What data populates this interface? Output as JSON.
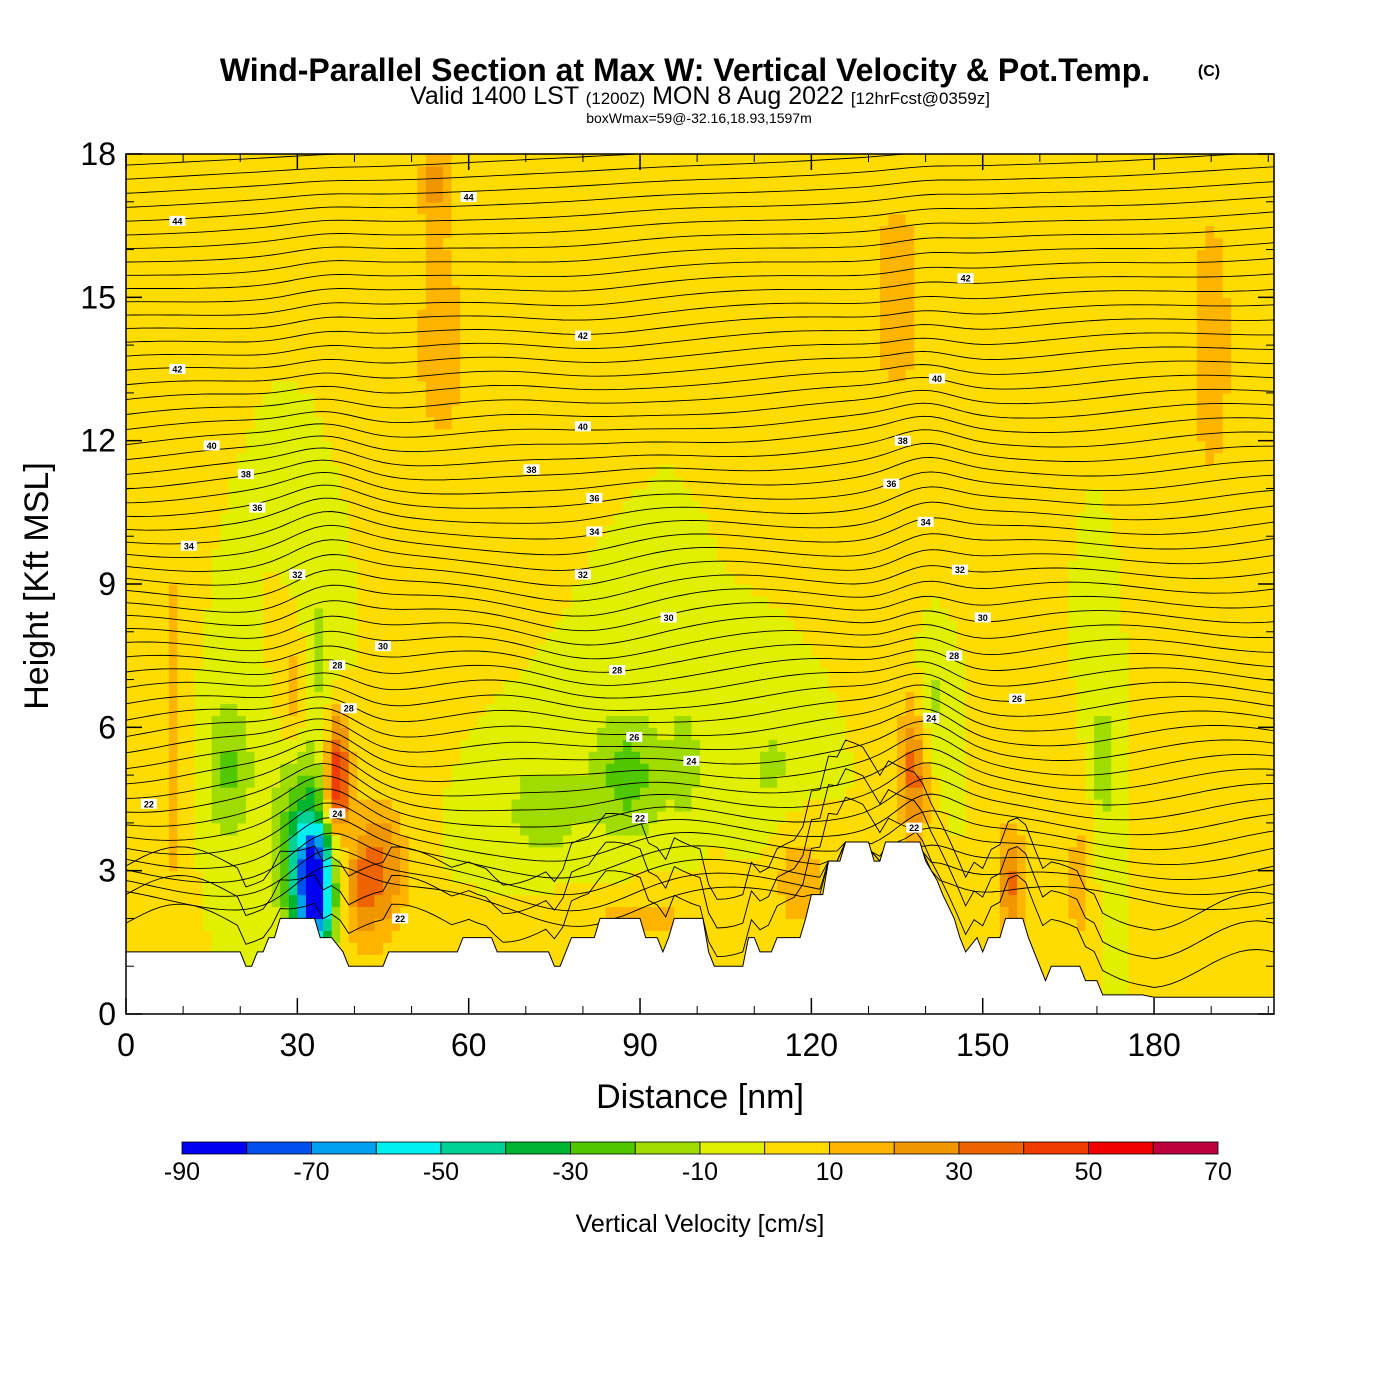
{
  "title": {
    "main": "Wind-Parallel Section at Max W: Vertical Velocity & Pot.Temp.",
    "copyright": "(C)",
    "valid_prefix": "Valid 1400 LST",
    "valid_utc": "(1200Z)",
    "valid_date": "MON 8 Aug 2022",
    "forecast": "[12hrFcst@0359z]",
    "boxwmax": "boxWmax=59@-32.16,18.93,1597m"
  },
  "chart_data": {
    "type": "heatmap",
    "xlabel": "Distance [nm]",
    "ylabel": "Height [Kft MSL]",
    "xlim": [
      0,
      201
    ],
    "ylim": [
      0,
      18
    ],
    "x_ticks": [
      0,
      30,
      60,
      90,
      120,
      150,
      180
    ],
    "y_ticks": [
      0,
      3,
      6,
      9,
      12,
      15,
      18
    ],
    "grid": false,
    "colorbar": {
      "title": "Vertical Velocity [cm/s]",
      "levels": [
        -90,
        -80,
        -70,
        -60,
        -50,
        -40,
        -30,
        -20,
        -10,
        0,
        10,
        20,
        30,
        40,
        50,
        60,
        70
      ],
      "tick_labels": [
        "-90",
        "-70",
        "-50",
        "-30",
        "-10",
        "10",
        "30",
        "50",
        "70"
      ],
      "tick_values": [
        -90,
        -70,
        -50,
        -30,
        -10,
        10,
        30,
        50,
        70
      ],
      "colors": [
        "#0000f0",
        "#0050f0",
        "#00a0f0",
        "#00f0f0",
        "#00d296",
        "#00b432",
        "#50c800",
        "#a0dc00",
        "#e1f000",
        "#ffdc00",
        "#ffb400",
        "#f09600",
        "#f06400",
        "#f03c00",
        "#f00000",
        "#be003c"
      ]
    },
    "background_velocity": 0,
    "velocity_features": [
      {
        "x": 33,
        "y": 2.6,
        "sx": 2.2,
        "sy": 0.9,
        "w": -80
      },
      {
        "x": 31,
        "y": 3.6,
        "sx": 3.5,
        "sy": 1.4,
        "w": -35
      },
      {
        "x": 18,
        "y": 5.2,
        "sx": 3,
        "sy": 1.1,
        "w": -22
      },
      {
        "x": 33,
        "y": 7.5,
        "sx": 2.5,
        "sy": 1.4,
        "w": -15
      },
      {
        "x": 37,
        "y": 5,
        "sx": 1.6,
        "sy": 0.9,
        "w": 55
      },
      {
        "x": 30,
        "y": 6.8,
        "sx": 2,
        "sy": 1,
        "w": 22
      },
      {
        "x": 45,
        "y": 3,
        "sx": 3,
        "sy": 1.1,
        "w": 28
      },
      {
        "x": 41,
        "y": 2.7,
        "sx": 2,
        "sy": 0.9,
        "w": 22
      },
      {
        "x": 8,
        "y": 6,
        "sx": 2,
        "sy": 5,
        "w": 12
      },
      {
        "x": 88,
        "y": 5,
        "sx": 4.5,
        "sy": 1,
        "w": -25
      },
      {
        "x": 73,
        "y": 4.3,
        "sx": 5.5,
        "sy": 0.9,
        "w": -15
      },
      {
        "x": 98,
        "y": 5.3,
        "sx": 2,
        "sy": 0.9,
        "w": -15
      },
      {
        "x": 113,
        "y": 5.2,
        "sx": 4,
        "sy": 0.8,
        "w": -12
      },
      {
        "x": 138,
        "y": 5.1,
        "sx": 1.8,
        "sy": 1.1,
        "w": 35
      },
      {
        "x": 141,
        "y": 6.5,
        "sx": 1.8,
        "sy": 0.9,
        "w": -15
      },
      {
        "x": 155,
        "y": 2.7,
        "sx": 1.6,
        "sy": 0.9,
        "w": 32
      },
      {
        "x": 167,
        "y": 2.8,
        "sx": 1.6,
        "sy": 1,
        "w": 18
      },
      {
        "x": 171,
        "y": 5.3,
        "sx": 1.3,
        "sy": 1.4,
        "w": -15
      },
      {
        "x": 118,
        "y": 2.8,
        "sx": 3,
        "sy": 0.8,
        "w": 18
      },
      {
        "x": 90,
        "y": 2,
        "sx": 12,
        "sy": 0.5,
        "w": 12
      },
      {
        "x": 55,
        "y": 14,
        "sx": 6,
        "sy": 3,
        "w": 12
      },
      {
        "x": 135,
        "y": 15,
        "sx": 6,
        "sy": 3,
        "w": 12
      },
      {
        "x": 190,
        "y": 14,
        "sx": 5,
        "sy": 4,
        "w": 12
      },
      {
        "x": 54,
        "y": 17.5,
        "sx": 1.5,
        "sy": 0.7,
        "w": 18
      }
    ],
    "terrain": [
      [
        0,
        1.3
      ],
      [
        20,
        1.3
      ],
      [
        21,
        1.0
      ],
      [
        22,
        1.0
      ],
      [
        23,
        1.3
      ],
      [
        24,
        1.3
      ],
      [
        25,
        1.6
      ],
      [
        26,
        1.6
      ],
      [
        27,
        2.0
      ],
      [
        33,
        2.0
      ],
      [
        34,
        1.6
      ],
      [
        36,
        1.6
      ],
      [
        38,
        1.3
      ],
      [
        39,
        1.0
      ],
      [
        45,
        1.0
      ],
      [
        46,
        1.3
      ],
      [
        58,
        1.3
      ],
      [
        59,
        1.6
      ],
      [
        64,
        1.6
      ],
      [
        65,
        1.3
      ],
      [
        74,
        1.3
      ],
      [
        75,
        1.0
      ],
      [
        76,
        1.0
      ],
      [
        77,
        1.3
      ],
      [
        78,
        1.6
      ],
      [
        82,
        1.6
      ],
      [
        83,
        2.0
      ],
      [
        90,
        2.0
      ],
      [
        91,
        1.6
      ],
      [
        93,
        1.6
      ],
      [
        94,
        1.3
      ],
      [
        95,
        1.6
      ],
      [
        96,
        2.0
      ],
      [
        101,
        2.0
      ],
      [
        102,
        1.3
      ],
      [
        103,
        1.0
      ],
      [
        108,
        1.0
      ],
      [
        109,
        1.6
      ],
      [
        110,
        1.6
      ],
      [
        111,
        1.3
      ],
      [
        113,
        1.3
      ],
      [
        114,
        1.6
      ],
      [
        118,
        1.6
      ],
      [
        119,
        2.0
      ],
      [
        120,
        2.5
      ],
      [
        122,
        2.5
      ],
      [
        123,
        3.2
      ],
      [
        125,
        3.2
      ],
      [
        126,
        3.6
      ],
      [
        130,
        3.6
      ],
      [
        131,
        3.2
      ],
      [
        132,
        3.2
      ],
      [
        133,
        3.6
      ],
      [
        139,
        3.6
      ],
      [
        140,
        3.2
      ],
      [
        142,
        2.8
      ],
      [
        143,
        2.5
      ],
      [
        145,
        2.0
      ],
      [
        146,
        1.6
      ],
      [
        147,
        1.3
      ],
      [
        149,
        1.6
      ],
      [
        150,
        1.3
      ],
      [
        151,
        1.6
      ],
      [
        153,
        1.6
      ],
      [
        154,
        2.0
      ],
      [
        157,
        2.0
      ],
      [
        158,
        1.6
      ],
      [
        160,
        1.0
      ],
      [
        161,
        0.7
      ],
      [
        162,
        1.0
      ],
      [
        167,
        1.0
      ],
      [
        168,
        0.7
      ],
      [
        170,
        0.7
      ],
      [
        171,
        0.4
      ],
      [
        178,
        0.4
      ],
      [
        180,
        0.35
      ],
      [
        201,
        0.35
      ]
    ],
    "theta_contours": [
      {
        "label": "22",
        "base": 3.6,
        "amp": 0.3,
        "label_x": 4,
        "label_y": 4.4
      },
      {
        "label": "22",
        "base": 3.8,
        "amp": 0.4,
        "label_x": 48,
        "label_y": 2.0
      },
      {
        "label": "22",
        "base": 3.9,
        "amp": 0.5,
        "label_x": 90,
        "label_y": 4.1
      },
      {
        "label": "22",
        "base": 4.0,
        "amp": 0.6,
        "label_x": 138,
        "label_y": 3.9
      },
      {
        "label": "24",
        "base": 5.0,
        "amp": 0.5,
        "label_x": 37,
        "label_y": 4.2
      },
      {
        "label": "24",
        "base": 5.2,
        "amp": 0.5,
        "label_x": 99,
        "label_y": 5.3
      },
      {
        "label": "24",
        "base": 5.6,
        "amp": 0.6,
        "label_x": 141,
        "label_y": 6.2
      },
      {
        "label": "26",
        "base": 5.9,
        "amp": 0.5,
        "label_x": 89,
        "label_y": 5.8
      },
      {
        "label": "26",
        "base": 6.3,
        "amp": 0.5,
        "label_x": 156,
        "label_y": 6.6
      },
      {
        "label": "28",
        "base": 6.8,
        "amp": 0.5,
        "label_x": 39,
        "label_y": 6.4
      },
      {
        "label": "28",
        "base": 7.0,
        "amp": 0.5,
        "label_x": 86,
        "label_y": 7.2
      },
      {
        "label": "28",
        "base": 7.2,
        "amp": 0.5,
        "label_x": 145,
        "label_y": 7.5
      },
      {
        "label": "28",
        "base": 7.0,
        "amp": 0.5,
        "label_x": 37,
        "label_y": 7.3
      },
      {
        "label": "30",
        "base": 7.8,
        "amp": 0.4,
        "label_x": 45,
        "label_y": 7.7
      },
      {
        "label": "30",
        "base": 8.2,
        "amp": 0.4,
        "label_x": 95,
        "label_y": 8.3
      },
      {
        "label": "30",
        "base": 8.2,
        "amp": 0.4,
        "label_x": 150,
        "label_y": 8.3
      },
      {
        "label": "32",
        "base": 9.1,
        "amp": 0.35,
        "label_x": 30,
        "label_y": 9.2
      },
      {
        "label": "32",
        "base": 9.2,
        "amp": 0.35,
        "label_x": 80,
        "label_y": 9.2
      },
      {
        "label": "32",
        "base": 9.3,
        "amp": 0.35,
        "label_x": 146,
        "label_y": 9.3
      },
      {
        "label": "34",
        "base": 9.8,
        "amp": 0.3,
        "label_x": 11,
        "label_y": 9.8
      },
      {
        "label": "34",
        "base": 10.0,
        "amp": 0.3,
        "label_x": 82,
        "label_y": 10.1
      },
      {
        "label": "34",
        "base": 10.3,
        "amp": 0.3,
        "label_x": 140,
        "label_y": 10.3
      },
      {
        "label": "36",
        "base": 10.7,
        "amp": 0.25,
        "label_x": 23,
        "label_y": 10.6
      },
      {
        "label": "36",
        "base": 10.8,
        "amp": 0.25,
        "label_x": 82,
        "label_y": 10.8
      },
      {
        "label": "36",
        "base": 11.0,
        "amp": 0.25,
        "label_x": 134,
        "label_y": 11.1
      },
      {
        "label": "38",
        "base": 11.4,
        "amp": 0.2,
        "label_x": 21,
        "label_y": 11.3
      },
      {
        "label": "38",
        "base": 11.5,
        "amp": 0.2,
        "label_x": 71,
        "label_y": 11.4
      },
      {
        "label": "38",
        "base": 11.9,
        "amp": 0.2,
        "label_x": 136,
        "label_y": 12.0
      },
      {
        "label": "40",
        "base": 12.0,
        "amp": 0.15,
        "label_x": 15,
        "label_y": 11.9
      },
      {
        "label": "40",
        "base": 12.3,
        "amp": 0.15,
        "label_x": 80,
        "label_y": 12.3
      },
      {
        "label": "40",
        "base": 13.2,
        "amp": 0.15,
        "label_x": 142,
        "label_y": 13.3
      },
      {
        "label": "42",
        "base": 13.6,
        "amp": 0.1,
        "label_x": 9,
        "label_y": 13.5
      },
      {
        "label": "42",
        "base": 14.2,
        "amp": 0.1,
        "label_x": 80,
        "label_y": 14.2
      },
      {
        "label": "42",
        "base": 15.3,
        "amp": 0.1,
        "label_x": 147,
        "label_y": 15.4
      },
      {
        "label": "44",
        "base": 16.5,
        "amp": 0.1,
        "label_x": 9,
        "label_y": 16.6
      },
      {
        "label": "44",
        "base": 17.2,
        "amp": 0.1,
        "label_x": 60,
        "label_y": 17.1
      }
    ]
  }
}
